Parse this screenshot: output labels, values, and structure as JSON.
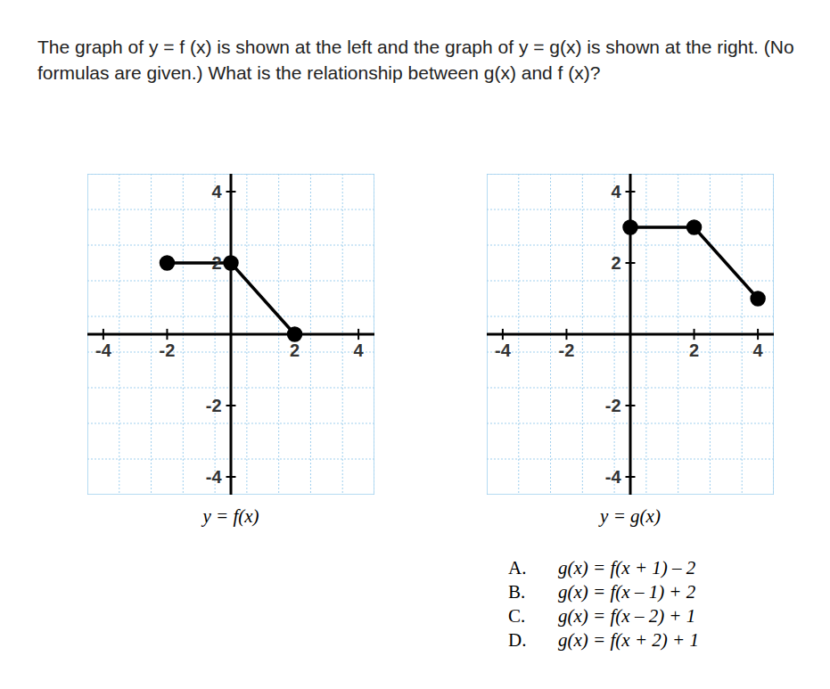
{
  "question": "The graph of y = f (x) is shown at the left and the graph of y = g(x) is shown at the right. (No formulas are given.) What is the relationship between g(x) and f (x)?",
  "chart_data": [
    {
      "type": "line",
      "title": "y = f(x)",
      "x": [
        -2,
        0,
        2
      ],
      "values": [
        2,
        2,
        0
      ],
      "color": "#000000",
      "marker": "circle",
      "xlim": [
        -4.5,
        4.5
      ],
      "ylim": [
        -4.5,
        4.5
      ],
      "xticks": [
        -4,
        -2,
        2,
        4
      ],
      "yticks": [
        -4,
        -2,
        2,
        4
      ],
      "grid": true
    },
    {
      "type": "line",
      "title": "y = g(x)",
      "x": [
        0,
        2,
        4
      ],
      "values": [
        3,
        3,
        1
      ],
      "color": "#000000",
      "marker": "circle",
      "xlim": [
        -4.5,
        4.5
      ],
      "ylim": [
        -4.5,
        4.5
      ],
      "xticks": [
        -4,
        -2,
        2,
        4
      ],
      "yticks": [
        -4,
        -2,
        2,
        4
      ],
      "grid": true
    }
  ],
  "choices": [
    {
      "letter": "A.",
      "text": "g(x) = f(x + 1) – 2"
    },
    {
      "letter": "B.",
      "text": "g(x) = f(x – 1) + 2"
    },
    {
      "letter": "C.",
      "text": "g(x) = f(x – 2) + 1"
    },
    {
      "letter": "D.",
      "text": "g(x) = f(x + 2) + 1"
    }
  ]
}
